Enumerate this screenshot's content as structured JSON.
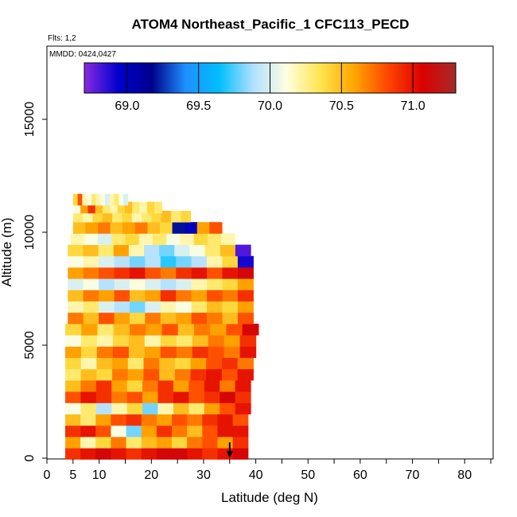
{
  "chart_data": {
    "type": "heatmap",
    "title": "ATOM4 Northeast_Pacific_1 CFC113_PECD",
    "flights_label": "Flts: 1,2",
    "dates_label": "MMDD: 0424,0427",
    "xlabel": "Latitude (deg N)",
    "ylabel": "Altitude (m)",
    "xlim": [
      0,
      85
    ],
    "ylim": [
      0,
      17500
    ],
    "x_ticks": [
      0,
      5,
      10,
      20,
      30,
      40,
      50,
      60,
      70,
      80
    ],
    "x_minor_ticks": [
      15,
      25,
      35,
      45,
      55,
      65,
      75,
      85
    ],
    "y_ticks": [
      0,
      5000,
      10000,
      15000
    ],
    "colorbar": {
      "range": [
        68.7,
        71.3
      ],
      "ticks": [
        69.0,
        69.5,
        70.0,
        70.5,
        71.0
      ],
      "tick_labels": [
        "69.0",
        "69.5",
        "70.0",
        "70.5",
        "71.0"
      ],
      "colors": [
        "#8a2be2",
        "#0000cd",
        "#00008b",
        "#1e90ff",
        "#00bfff",
        "#b0e0ff",
        "#ffffe0",
        "#ffe44d",
        "#ffa500",
        "#ff4500",
        "#dd0000",
        "#a52a2a"
      ]
    },
    "layers": [
      {
        "alt": 200,
        "lat_min": 3.5,
        "lat_max": 38.5,
        "values": [
          70.9,
          71.0,
          71.1,
          71.0,
          70.9,
          71.0,
          71.1,
          71.1,
          71.0,
          70.9,
          71.0,
          71.1
        ]
      },
      {
        "alt": 700,
        "lat_min": 3.5,
        "lat_max": 38.5,
        "values": [
          70.6,
          70.2,
          70.4,
          70.7,
          70.3,
          70.5,
          70.6,
          70.4,
          70.7,
          70.8,
          70.6,
          70.9
        ]
      },
      {
        "alt": 1200,
        "lat_min": 3.5,
        "lat_max": 38.5,
        "values": [
          70.9,
          71.0,
          70.8,
          70.1,
          69.8,
          70.6,
          70.9,
          70.7,
          70.5,
          70.8,
          71.0,
          71.0
        ]
      },
      {
        "alt": 1700,
        "lat_min": 3.5,
        "lat_max": 38.5,
        "values": [
          70.5,
          70.3,
          70.6,
          70.8,
          70.9,
          70.7,
          70.6,
          70.8,
          70.7,
          70.9,
          71.0,
          70.8
        ]
      },
      {
        "alt": 2200,
        "lat_min": 3.5,
        "lat_max": 39.0,
        "values": [
          70.1,
          70.3,
          69.9,
          70.2,
          70.4,
          69.8,
          70.2,
          70.5,
          70.3,
          70.6,
          70.8,
          71.0
        ]
      },
      {
        "alt": 2700,
        "lat_min": 3.5,
        "lat_max": 39.0,
        "values": [
          70.8,
          71.0,
          70.9,
          70.7,
          70.8,
          70.6,
          70.9,
          71.0,
          70.8,
          70.9,
          71.1,
          70.9
        ]
      },
      {
        "alt": 3200,
        "lat_min": 3.5,
        "lat_max": 39.0,
        "values": [
          70.5,
          70.7,
          70.9,
          70.6,
          70.4,
          70.7,
          70.9,
          70.6,
          70.8,
          71.0,
          70.7,
          71.0
        ]
      },
      {
        "alt": 3700,
        "lat_min": 3.5,
        "lat_max": 39.5,
        "values": [
          70.3,
          70.5,
          70.4,
          70.7,
          70.6,
          70.8,
          70.5,
          70.7,
          70.9,
          71.0,
          70.8,
          71.0
        ]
      },
      {
        "alt": 4200,
        "lat_min": 3.5,
        "lat_max": 39.5,
        "values": [
          70.4,
          70.2,
          70.5,
          70.6,
          70.3,
          70.7,
          70.5,
          70.4,
          70.6,
          70.8,
          70.9,
          70.7
        ]
      },
      {
        "alt": 4700,
        "lat_min": 3.5,
        "lat_max": 40.0,
        "values": [
          70.6,
          70.4,
          70.7,
          70.8,
          70.5,
          70.6,
          70.8,
          70.7,
          70.9,
          70.8,
          70.7,
          71.0
        ]
      },
      {
        "alt": 5200,
        "lat_min": 3.5,
        "lat_max": 40.0,
        "values": [
          70.1,
          70.3,
          70.2,
          70.4,
          70.5,
          70.2,
          70.4,
          70.3,
          70.5,
          70.7,
          70.6,
          70.9
        ]
      },
      {
        "alt": 5700,
        "lat_min": 3.5,
        "lat_max": 40.5,
        "values": [
          70.4,
          70.6,
          70.3,
          70.5,
          70.7,
          70.6,
          70.8,
          70.5,
          70.7,
          70.6,
          70.8,
          71.1
        ]
      },
      {
        "alt": 6200,
        "lat_min": 4.0,
        "lat_max": 39.5,
        "values": [
          70.7,
          70.5,
          70.8,
          70.6,
          70.4,
          70.7,
          70.5,
          70.6,
          70.8,
          70.7,
          70.5,
          70.8
        ]
      },
      {
        "alt": 6700,
        "lat_min": 4.0,
        "lat_max": 39.5,
        "values": [
          70.2,
          70.3,
          70.0,
          69.9,
          69.8,
          70.0,
          70.2,
          70.1,
          70.3,
          70.5,
          70.4,
          70.6
        ]
      },
      {
        "alt": 7200,
        "lat_min": 4.0,
        "lat_max": 39.5,
        "values": [
          70.5,
          70.7,
          70.6,
          70.8,
          70.5,
          70.6,
          70.9,
          70.7,
          70.6,
          70.8,
          70.7,
          70.9
        ]
      },
      {
        "alt": 7700,
        "lat_min": 4.0,
        "lat_max": 39.5,
        "values": [
          70.0,
          70.1,
          69.9,
          70.0,
          70.1,
          70.0,
          69.9,
          70.0,
          70.2,
          70.3,
          70.4,
          70.6
        ]
      },
      {
        "alt": 8200,
        "lat_min": 4.0,
        "lat_max": 39.5,
        "values": [
          70.6,
          70.7,
          70.8,
          70.9,
          71.0,
          70.8,
          70.7,
          70.9,
          71.0,
          70.8,
          71.0,
          71.1
        ]
      },
      {
        "alt": 8700,
        "lat_min": 4.0,
        "lat_max": 39.5,
        "values": [
          70.1,
          70.2,
          70.0,
          69.9,
          69.8,
          69.9,
          69.7,
          69.8,
          69.9,
          70.2,
          70.4,
          68.9
        ]
      },
      {
        "alt": 9200,
        "lat_min": 4.0,
        "lat_max": 39.0,
        "values": [
          70.4,
          70.5,
          70.3,
          70.6,
          70.2,
          69.9,
          69.8,
          70.0,
          70.1,
          70.3,
          70.5,
          68.8
        ]
      },
      {
        "alt": 9700,
        "lat_min": 4.5,
        "lat_max": 36.0,
        "values": [
          70.2,
          70.1,
          70.0,
          70.3,
          70.4,
          70.2,
          70.3,
          70.1,
          70.2,
          70.4,
          70.3,
          70.2
        ]
      },
      {
        "alt": 10200,
        "lat_min": 5.0,
        "lat_max": 33.5,
        "values": [
          70.5,
          70.6,
          70.7,
          70.5,
          70.6,
          70.7,
          70.5,
          70.4,
          69.2,
          69.0,
          70.6,
          70.8
        ]
      },
      {
        "alt": 10700,
        "lat_min": 5.0,
        "lat_max": 27.5,
        "values": [
          70.3,
          70.2,
          70.4,
          70.5,
          70.3,
          70.4,
          70.2,
          70.3,
          70.4,
          70.5,
          70.3,
          70.4
        ]
      },
      {
        "alt": 11100,
        "lat_min": 5.0,
        "lat_max": 22.0,
        "values": [
          70.1,
          70.6,
          70.9,
          70.5,
          70.3,
          70.2,
          70.4,
          70.5,
          70.3,
          70.2,
          70.4,
          70.3
        ]
      },
      {
        "alt": 11450,
        "lat_min": 5.0,
        "lat_max": 15.5,
        "values": [
          70.4,
          70.8,
          70.2,
          70.1,
          70.3,
          70.2,
          70.1,
          70.0,
          70.2,
          70.3,
          70.1,
          70.0
        ]
      }
    ],
    "arrow": {
      "lat": 35,
      "alt_top": 700,
      "alt_bottom": 0
    }
  }
}
